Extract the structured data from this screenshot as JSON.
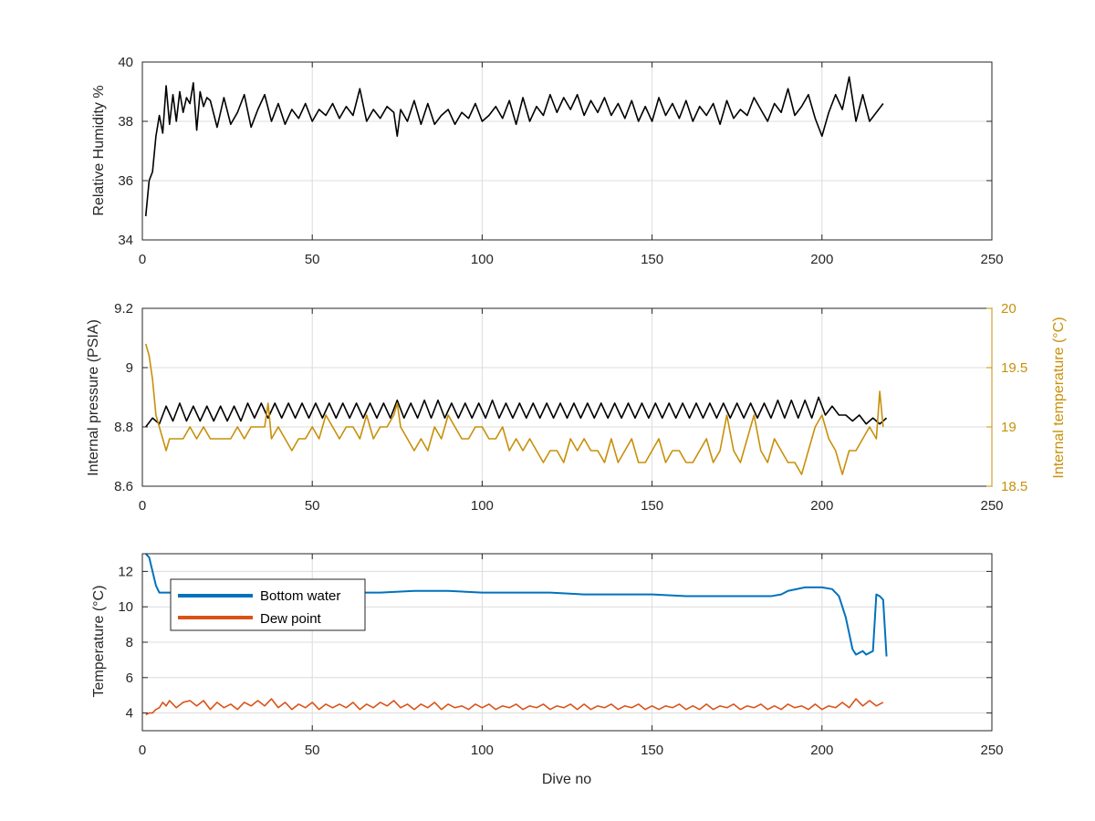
{
  "figure": {
    "xlabel": "Dive no"
  },
  "colors": {
    "black": "#000000",
    "gold": "#C8900A",
    "blue": "#0072BD",
    "orange": "#D95319",
    "grid": "#dcdcdc",
    "axis": "#262626"
  },
  "chart_data": [
    {
      "type": "line",
      "title": "",
      "xlabel": "",
      "ylabel": "Relative Humidity %",
      "xlim": [
        0,
        250
      ],
      "ylim": [
        34,
        40
      ],
      "xticks": [
        0,
        50,
        100,
        150,
        200,
        250
      ],
      "yticks": [
        34,
        36,
        38,
        40
      ],
      "grid": true,
      "series": [
        {
          "color": "#000000",
          "x": [
            1,
            2,
            3,
            4,
            5,
            6,
            7,
            8,
            9,
            10,
            11,
            12,
            13,
            14,
            15,
            16,
            17,
            18,
            19,
            20,
            22,
            24,
            26,
            28,
            30,
            32,
            34,
            36,
            38,
            40,
            42,
            44,
            46,
            48,
            50,
            52,
            54,
            56,
            58,
            60,
            62,
            64,
            66,
            68,
            70,
            72,
            74,
            75,
            76,
            78,
            80,
            82,
            84,
            86,
            88,
            90,
            92,
            94,
            96,
            98,
            100,
            102,
            104,
            106,
            108,
            110,
            112,
            114,
            116,
            118,
            120,
            122,
            124,
            126,
            128,
            130,
            132,
            134,
            136,
            138,
            140,
            142,
            144,
            146,
            148,
            150,
            152,
            154,
            156,
            158,
            160,
            162,
            164,
            166,
            168,
            170,
            172,
            174,
            176,
            178,
            180,
            182,
            184,
            186,
            188,
            190,
            192,
            194,
            196,
            198,
            200,
            202,
            204,
            206,
            208,
            210,
            212,
            214,
            216,
            218
          ],
          "y": [
            34.8,
            36.0,
            36.3,
            37.5,
            38.2,
            37.6,
            39.2,
            37.9,
            38.9,
            38.0,
            39.0,
            38.3,
            38.8,
            38.6,
            39.3,
            37.7,
            39.0,
            38.5,
            38.8,
            38.7,
            37.8,
            38.8,
            37.9,
            38.3,
            38.9,
            37.8,
            38.4,
            38.9,
            38.0,
            38.6,
            37.9,
            38.4,
            38.1,
            38.6,
            38.0,
            38.4,
            38.2,
            38.6,
            38.1,
            38.5,
            38.2,
            39.1,
            38.0,
            38.4,
            38.1,
            38.5,
            38.3,
            37.5,
            38.4,
            38.0,
            38.7,
            37.9,
            38.6,
            37.9,
            38.2,
            38.4,
            37.9,
            38.3,
            38.1,
            38.6,
            38.0,
            38.2,
            38.5,
            38.1,
            38.7,
            37.9,
            38.8,
            38.0,
            38.5,
            38.2,
            38.9,
            38.3,
            38.8,
            38.4,
            38.9,
            38.2,
            38.7,
            38.3,
            38.8,
            38.2,
            38.6,
            38.1,
            38.7,
            38.0,
            38.5,
            38.0,
            38.8,
            38.2,
            38.6,
            38.1,
            38.7,
            38.0,
            38.5,
            38.2,
            38.6,
            37.9,
            38.7,
            38.1,
            38.4,
            38.2,
            38.8,
            38.4,
            38.0,
            38.6,
            38.3,
            39.1,
            38.2,
            38.5,
            38.9,
            38.1,
            37.5,
            38.3,
            38.9,
            38.4,
            39.5,
            38.0,
            38.9,
            38.0,
            38.3,
            38.6
          ]
        }
      ]
    },
    {
      "type": "line",
      "title": "",
      "xlabel": "",
      "ylabel": "Internal pressure (PSIA)",
      "ylabel_right": "Internal temperature (°C)",
      "xlim": [
        0,
        250
      ],
      "ylim": [
        8.6,
        9.2
      ],
      "ylim_right": [
        18.5,
        20
      ],
      "xticks": [
        0,
        50,
        100,
        150,
        200,
        250
      ],
      "yticks": [
        8.6,
        8.8,
        9.0,
        9.2
      ],
      "yticks_right": [
        18.5,
        19,
        19.5,
        20
      ],
      "ytick_labels": [
        "8.6",
        "8.8",
        "9",
        "9.2"
      ],
      "ytick_labels_right": [
        "18.5",
        "19",
        "19.5",
        "20"
      ],
      "grid": true,
      "series": [
        {
          "axis": "left",
          "color": "#000000",
          "x": [
            1,
            3,
            5,
            7,
            9,
            11,
            13,
            15,
            17,
            19,
            21,
            23,
            25,
            27,
            29,
            31,
            33,
            35,
            37,
            39,
            41,
            43,
            45,
            47,
            49,
            51,
            53,
            55,
            57,
            59,
            61,
            63,
            65,
            67,
            69,
            71,
            73,
            75,
            77,
            79,
            81,
            83,
            85,
            87,
            89,
            91,
            93,
            95,
            97,
            99,
            101,
            103,
            105,
            107,
            109,
            111,
            113,
            115,
            117,
            119,
            121,
            123,
            125,
            127,
            129,
            131,
            133,
            135,
            137,
            139,
            141,
            143,
            145,
            147,
            149,
            151,
            153,
            155,
            157,
            159,
            161,
            163,
            165,
            167,
            169,
            171,
            173,
            175,
            177,
            179,
            181,
            183,
            185,
            187,
            189,
            191,
            193,
            195,
            197,
            199,
            201,
            203,
            205,
            207,
            209,
            211,
            213,
            215,
            217,
            219
          ],
          "y": [
            8.8,
            8.83,
            8.81,
            8.87,
            8.82,
            8.88,
            8.82,
            8.87,
            8.82,
            8.87,
            8.82,
            8.87,
            8.82,
            8.87,
            8.82,
            8.88,
            8.83,
            8.88,
            8.83,
            8.88,
            8.83,
            8.88,
            8.83,
            8.88,
            8.83,
            8.88,
            8.83,
            8.88,
            8.83,
            8.88,
            8.83,
            8.88,
            8.83,
            8.88,
            8.83,
            8.88,
            8.83,
            8.89,
            8.83,
            8.88,
            8.83,
            8.89,
            8.83,
            8.89,
            8.83,
            8.88,
            8.83,
            8.88,
            8.83,
            8.88,
            8.83,
            8.89,
            8.83,
            8.88,
            8.83,
            8.88,
            8.83,
            8.88,
            8.83,
            8.88,
            8.83,
            8.88,
            8.83,
            8.88,
            8.83,
            8.88,
            8.83,
            8.88,
            8.83,
            8.88,
            8.83,
            8.88,
            8.83,
            8.88,
            8.83,
            8.88,
            8.83,
            8.88,
            8.83,
            8.88,
            8.83,
            8.88,
            8.83,
            8.88,
            8.83,
            8.88,
            8.83,
            8.88,
            8.83,
            8.88,
            8.83,
            8.88,
            8.83,
            8.89,
            8.83,
            8.89,
            8.83,
            8.89,
            8.83,
            8.9,
            8.84,
            8.87,
            8.84,
            8.84,
            8.82,
            8.84,
            8.81,
            8.83,
            8.81,
            8.83
          ]
        },
        {
          "axis": "right",
          "color": "#C8900A",
          "x": [
            1,
            2,
            3,
            4,
            5,
            6,
            7,
            8,
            10,
            12,
            14,
            16,
            18,
            20,
            22,
            24,
            26,
            28,
            30,
            32,
            34,
            36,
            37,
            38,
            40,
            42,
            44,
            46,
            48,
            50,
            52,
            54,
            56,
            58,
            60,
            62,
            64,
            66,
            68,
            70,
            72,
            74,
            75,
            76,
            78,
            80,
            82,
            84,
            86,
            88,
            90,
            92,
            94,
            96,
            98,
            100,
            102,
            104,
            106,
            108,
            110,
            112,
            114,
            116,
            118,
            120,
            122,
            124,
            126,
            128,
            130,
            132,
            134,
            136,
            138,
            140,
            142,
            144,
            146,
            148,
            150,
            152,
            154,
            156,
            158,
            160,
            162,
            164,
            166,
            168,
            170,
            172,
            174,
            176,
            178,
            180,
            182,
            184,
            186,
            188,
            190,
            192,
            194,
            196,
            198,
            200,
            202,
            204,
            206,
            208,
            210,
            212,
            214,
            216,
            217,
            218
          ],
          "y": [
            19.7,
            19.6,
            19.4,
            19.1,
            19.0,
            18.9,
            18.8,
            18.9,
            18.9,
            18.9,
            19.0,
            18.9,
            19.0,
            18.9,
            18.9,
            18.9,
            18.9,
            19.0,
            18.9,
            19.0,
            19.0,
            19.0,
            19.2,
            18.9,
            19.0,
            18.9,
            18.8,
            18.9,
            18.9,
            19.0,
            18.9,
            19.1,
            19.0,
            18.9,
            19.0,
            19.0,
            18.9,
            19.1,
            18.9,
            19.0,
            19.0,
            19.1,
            19.2,
            19.0,
            18.9,
            18.8,
            18.9,
            18.8,
            19.0,
            18.9,
            19.1,
            19.0,
            18.9,
            18.9,
            19.0,
            19.0,
            18.9,
            18.9,
            19.0,
            18.8,
            18.9,
            18.8,
            18.9,
            18.8,
            18.7,
            18.8,
            18.8,
            18.7,
            18.9,
            18.8,
            18.9,
            18.8,
            18.8,
            18.7,
            18.9,
            18.7,
            18.8,
            18.9,
            18.7,
            18.7,
            18.8,
            18.9,
            18.7,
            18.8,
            18.8,
            18.7,
            18.7,
            18.8,
            18.9,
            18.7,
            18.8,
            19.1,
            18.8,
            18.7,
            18.9,
            19.1,
            18.8,
            18.7,
            18.9,
            18.8,
            18.7,
            18.7,
            18.6,
            18.8,
            19.0,
            19.1,
            18.9,
            18.8,
            18.6,
            18.8,
            18.8,
            18.9,
            19.0,
            18.9,
            19.3,
            19.0
          ]
        }
      ]
    },
    {
      "type": "line",
      "title": "",
      "xlabel": "Dive no",
      "ylabel": "Temperature (°C)",
      "xlim": [
        0,
        250
      ],
      "ylim": [
        3,
        13
      ],
      "xticks": [
        0,
        50,
        100,
        150,
        200,
        250
      ],
      "yticks": [
        4,
        6,
        8,
        10,
        12
      ],
      "grid": true,
      "legend": "top-left",
      "series": [
        {
          "name": "Bottom water",
          "color": "#0072BD",
          "x": [
            1,
            2,
            3,
            4,
            5,
            6,
            8,
            10,
            20,
            30,
            40,
            50,
            60,
            70,
            80,
            90,
            100,
            110,
            120,
            130,
            140,
            150,
            160,
            170,
            180,
            185,
            188,
            190,
            195,
            200,
            203,
            205,
            207,
            208,
            209,
            210,
            211,
            212,
            213,
            214,
            215,
            216,
            217,
            218,
            219
          ],
          "y": [
            13.0,
            12.8,
            12.0,
            11.2,
            10.8,
            10.8,
            10.8,
            10.8,
            10.8,
            10.8,
            10.8,
            10.8,
            10.8,
            10.8,
            10.9,
            10.9,
            10.8,
            10.8,
            10.8,
            10.7,
            10.7,
            10.7,
            10.6,
            10.6,
            10.6,
            10.6,
            10.7,
            10.9,
            11.1,
            11.1,
            11.0,
            10.6,
            9.4,
            8.5,
            7.6,
            7.3,
            7.4,
            7.5,
            7.3,
            7.4,
            7.5,
            10.7,
            10.6,
            10.4,
            7.2
          ]
        },
        {
          "name": "Dew point",
          "color": "#D95319",
          "x": [
            1,
            2,
            3,
            4,
            5,
            6,
            7,
            8,
            10,
            12,
            14,
            16,
            18,
            20,
            22,
            24,
            26,
            28,
            30,
            32,
            34,
            36,
            38,
            40,
            42,
            44,
            46,
            48,
            50,
            52,
            54,
            56,
            58,
            60,
            62,
            64,
            66,
            68,
            70,
            72,
            74,
            76,
            78,
            80,
            82,
            84,
            86,
            88,
            90,
            92,
            94,
            96,
            98,
            100,
            102,
            104,
            106,
            108,
            110,
            112,
            114,
            116,
            118,
            120,
            122,
            124,
            126,
            128,
            130,
            132,
            134,
            136,
            138,
            140,
            142,
            144,
            146,
            148,
            150,
            152,
            154,
            156,
            158,
            160,
            162,
            164,
            166,
            168,
            170,
            172,
            174,
            176,
            178,
            180,
            182,
            184,
            186,
            188,
            190,
            192,
            194,
            196,
            198,
            200,
            202,
            204,
            206,
            208,
            210,
            212,
            214,
            216,
            218
          ],
          "y": [
            3.9,
            4.0,
            4.0,
            4.2,
            4.3,
            4.6,
            4.4,
            4.7,
            4.3,
            4.6,
            4.7,
            4.4,
            4.7,
            4.2,
            4.6,
            4.3,
            4.5,
            4.2,
            4.6,
            4.4,
            4.7,
            4.4,
            4.8,
            4.3,
            4.6,
            4.2,
            4.5,
            4.3,
            4.6,
            4.2,
            4.5,
            4.3,
            4.5,
            4.3,
            4.6,
            4.2,
            4.5,
            4.3,
            4.6,
            4.4,
            4.7,
            4.3,
            4.5,
            4.2,
            4.5,
            4.3,
            4.6,
            4.2,
            4.5,
            4.3,
            4.4,
            4.2,
            4.5,
            4.3,
            4.5,
            4.2,
            4.4,
            4.3,
            4.5,
            4.2,
            4.4,
            4.3,
            4.5,
            4.2,
            4.4,
            4.3,
            4.5,
            4.2,
            4.5,
            4.2,
            4.4,
            4.3,
            4.5,
            4.2,
            4.4,
            4.3,
            4.5,
            4.2,
            4.4,
            4.2,
            4.4,
            4.3,
            4.5,
            4.2,
            4.4,
            4.2,
            4.5,
            4.2,
            4.4,
            4.3,
            4.5,
            4.2,
            4.4,
            4.3,
            4.5,
            4.2,
            4.4,
            4.2,
            4.5,
            4.3,
            4.4,
            4.2,
            4.5,
            4.2,
            4.4,
            4.3,
            4.6,
            4.3,
            4.8,
            4.4,
            4.7,
            4.4,
            4.6
          ]
        }
      ]
    }
  ]
}
